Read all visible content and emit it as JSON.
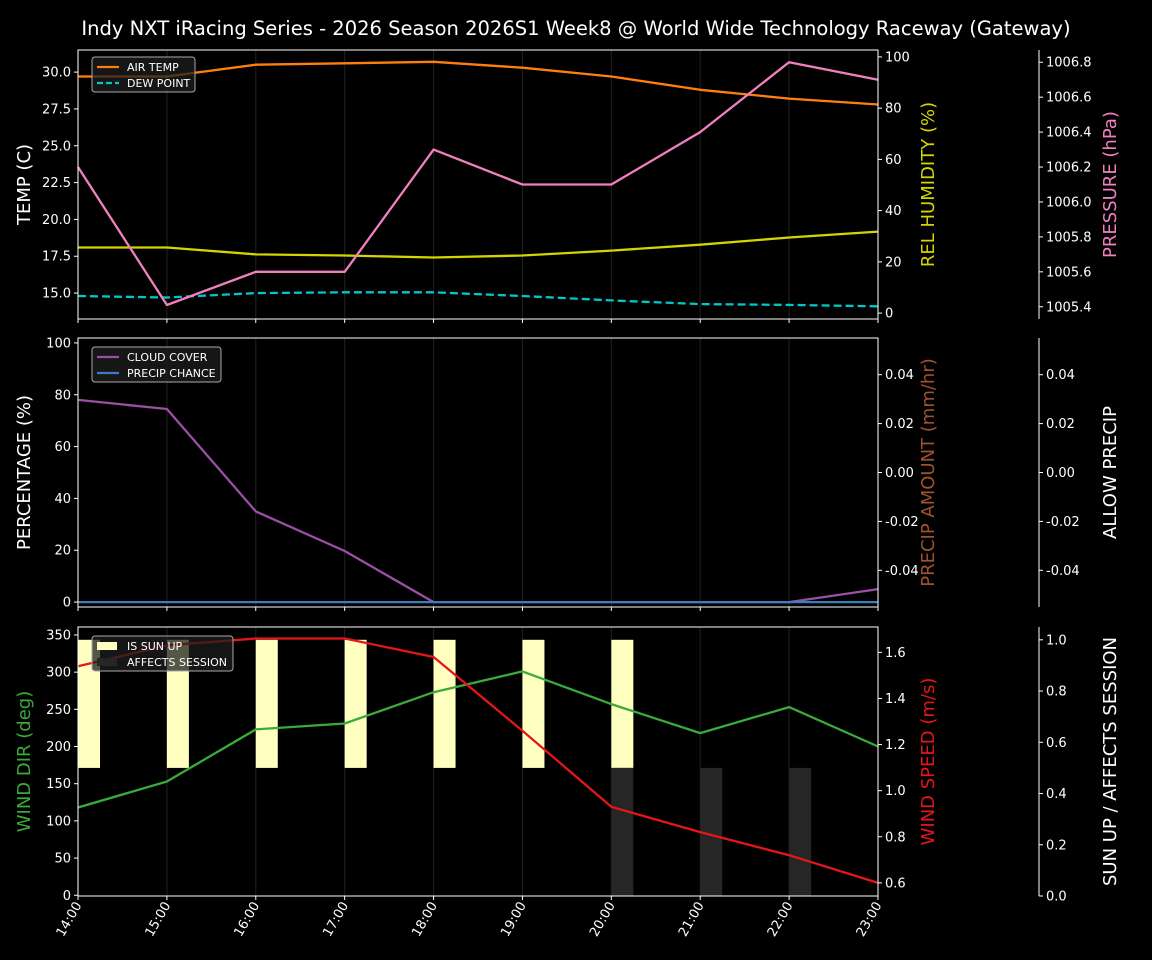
{
  "title": "Indy NXT iRacing Series - 2026 Season 2026S1 Week8 @ World Wide Technology Raceway (Gateway)",
  "chart_data": [
    {
      "type": "line",
      "x": [
        "14:00",
        "15:00",
        "16:00",
        "17:00",
        "18:00",
        "19:00",
        "20:00",
        "21:00",
        "22:00",
        "23:00"
      ],
      "grid": "vertical",
      "legend": "top-left",
      "axes": [
        {
          "id": "temp",
          "side": "left",
          "label": "TEMP (C)",
          "label_color": "#ffffff",
          "ylim": [
            13.24,
            31.5
          ],
          "ticks": [
            15.0,
            17.5,
            20.0,
            22.5,
            25.0,
            27.5,
            30.0
          ],
          "decimals": 1
        },
        {
          "id": "hum",
          "side": "right",
          "label": "REL HUMIDITY (%)",
          "label_color": "#d4d400",
          "ylim": [
            -2.3,
            102.7
          ],
          "ticks": [
            0,
            20,
            40,
            60,
            80,
            100
          ],
          "decimals": 0
        },
        {
          "id": "pres",
          "side": "far-right",
          "label": "PRESSURE (hPa)",
          "label_color": "#f080c0",
          "ylim": [
            1005.33,
            1006.87
          ],
          "ticks": [
            1005.4,
            1005.6,
            1005.8,
            1006.0,
            1006.2,
            1006.4,
            1006.6,
            1006.8
          ],
          "decimals": 1
        }
      ],
      "series": [
        {
          "name": "AIR TEMP",
          "axis": "temp",
          "color": "#ff7f0e",
          "dashed": false,
          "legend": true,
          "values": [
            29.7,
            29.7,
            30.5,
            30.6,
            30.7,
            30.3,
            29.7,
            28.8,
            28.2,
            27.8
          ]
        },
        {
          "name": "DEW POINT",
          "axis": "temp",
          "color": "#00c8c8",
          "dashed": true,
          "legend": true,
          "values": [
            14.8,
            14.7,
            15.0,
            15.05,
            15.05,
            14.8,
            14.5,
            14.25,
            14.2,
            14.1
          ]
        },
        {
          "axis": "hum",
          "color": "#d4d400",
          "dashed": false,
          "legend": false,
          "values": [
            25.6,
            25.6,
            22.9,
            22.5,
            21.7,
            22.5,
            24.4,
            26.7,
            29.5,
            31.8
          ]
        },
        {
          "axis": "pres",
          "color": "#f080c0",
          "dashed": false,
          "legend": false,
          "values": [
            1006.2,
            1005.41,
            1005.6,
            1005.6,
            1006.3,
            1006.1,
            1006.1,
            1006.4,
            1006.8,
            1006.7
          ]
        }
      ]
    },
    {
      "type": "line",
      "x": [
        "14:00",
        "15:00",
        "16:00",
        "17:00",
        "18:00",
        "19:00",
        "20:00",
        "21:00",
        "22:00",
        "23:00"
      ],
      "grid": "vertical",
      "legend": "top-left",
      "axes": [
        {
          "id": "pct",
          "side": "left",
          "label": "PERCENTAGE (%)",
          "label_color": "#ffffff",
          "ylim": [
            -1.9,
            101.9
          ],
          "ticks": [
            0,
            20,
            40,
            60,
            80,
            100
          ],
          "decimals": 0
        },
        {
          "id": "amt",
          "side": "right",
          "label": "PRECIP AMOUNT (mm/hr)",
          "label_color": "#a0522d",
          "ylim": [
            -0.055,
            0.055
          ],
          "ticks": [
            -0.04,
            -0.02,
            0.0,
            0.02,
            0.04
          ],
          "decimals": 2
        },
        {
          "id": "allow",
          "side": "far-right",
          "label": "ALLOW PRECIP",
          "label_color": "#ffffff",
          "ylim": [
            -0.055,
            0.055
          ],
          "ticks": [
            -0.04,
            -0.02,
            0.0,
            0.02,
            0.04
          ],
          "decimals": 2
        }
      ],
      "series": [
        {
          "name": "CLOUD COVER",
          "axis": "pct",
          "color": "#9b4fa5",
          "dashed": false,
          "legend": true,
          "values": [
            78,
            74.5,
            35,
            19.7,
            0,
            0,
            0,
            0,
            0,
            5
          ]
        },
        {
          "name": "PRECIP CHANCE",
          "axis": "pct",
          "color": "#3a7ec0",
          "dashed": false,
          "legend": true,
          "values": [
            0,
            0,
            0,
            0,
            0,
            0,
            0,
            0,
            0,
            0
          ]
        }
      ]
    },
    {
      "type": "line",
      "x": [
        "14:00",
        "15:00",
        "16:00",
        "17:00",
        "18:00",
        "19:00",
        "20:00",
        "21:00",
        "22:00",
        "23:00"
      ],
      "grid": "vertical",
      "legend": "top-left",
      "axes": [
        {
          "id": "dir",
          "side": "left",
          "label": "WIND DIR (deg)",
          "label_color": "#3aaa3a",
          "ylim": [
            -1,
            360.7
          ],
          "ticks": [
            0,
            50,
            100,
            150,
            200,
            250,
            300,
            350
          ],
          "decimals": 0
        },
        {
          "id": "spd",
          "side": "right",
          "label": "WIND SPEED (m/s)",
          "label_color": "#e4161a",
          "ylim": [
            0.543,
            1.71
          ],
          "ticks": [
            0.6,
            0.8,
            1.0,
            1.2,
            1.4,
            1.6
          ],
          "decimals": 1
        },
        {
          "id": "sun",
          "side": "far-right",
          "label": "SUN UP / AFFECTS SESSION",
          "label_color": "#ffffff",
          "ylim": [
            0,
            1.05
          ],
          "ticks": [
            0.0,
            0.2,
            0.4,
            0.6,
            0.8,
            1.0
          ],
          "decimals": 1
        }
      ],
      "bars": [
        {
          "name": "IS SUN UP",
          "axis": "sun",
          "color": "#ffffc0",
          "base": 0.5,
          "values": [
            1,
            1,
            1,
            1,
            1,
            1,
            1,
            0,
            0,
            0
          ]
        },
        {
          "name": "AFFECTS SESSION",
          "axis": "sun",
          "color": "#262626",
          "base": 0,
          "values": [
            0,
            0,
            0,
            0,
            0,
            0,
            1,
            1,
            1,
            0
          ]
        }
      ],
      "series": [
        {
          "axis": "dir",
          "color": "#3aaa3a",
          "dashed": false,
          "legend": false,
          "values": [
            118,
            153,
            223,
            231,
            273,
            301,
            257,
            218,
            253,
            200
          ]
        },
        {
          "axis": "spd",
          "color": "#e4161a",
          "dashed": false,
          "legend": false,
          "values": [
            1.54,
            1.63,
            1.66,
            1.66,
            1.58,
            1.26,
            0.93,
            0.82,
            0.72,
            0.6
          ]
        }
      ]
    }
  ]
}
